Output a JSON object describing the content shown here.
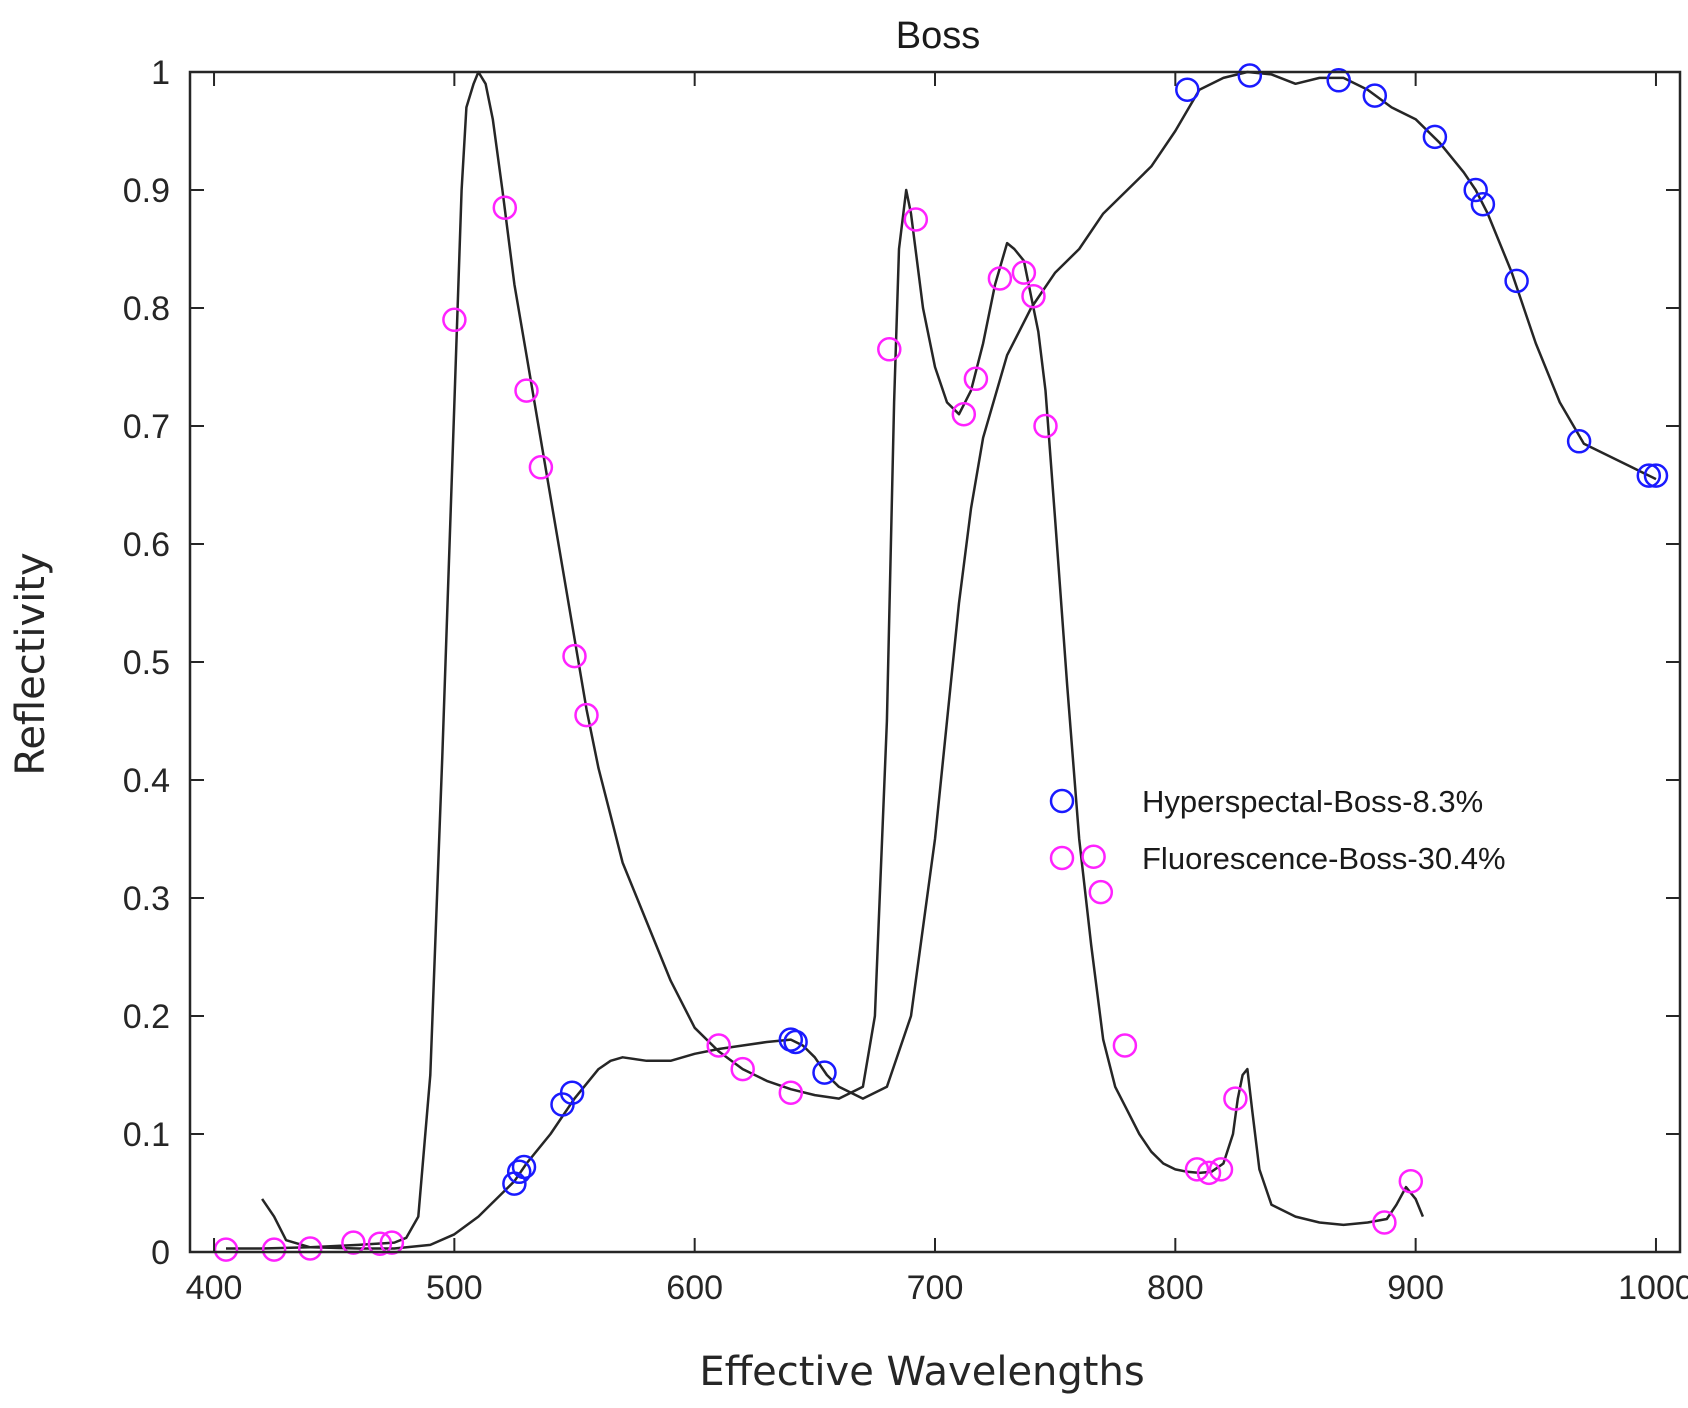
{
  "chart_data": {
    "type": "line",
    "title": "Boss",
    "xlabel": "Effective Wavelengths",
    "ylabel": "Reflectivity",
    "xlim": [
      390,
      1010
    ],
    "ylim": [
      0,
      1
    ],
    "xticks": [
      400,
      500,
      600,
      700,
      800,
      900,
      1000
    ],
    "yticks": [
      0,
      0.1,
      0.2,
      0.3,
      0.4,
      0.5,
      0.6,
      0.7,
      0.8,
      0.9,
      1
    ],
    "ytick_labels": [
      "0",
      "0.1",
      "0.2",
      "0.3",
      "0.4",
      "0.5",
      "0.6",
      "0.7",
      "0.8",
      "0.9",
      "1"
    ],
    "grid": false,
    "legend_position": "center-right",
    "colors": {
      "curve": "#262626",
      "hyperspectral": "#1a1aff",
      "fluorescence": "#ff22ff",
      "axes": "#262626"
    },
    "curves": [
      {
        "x": [
          405,
          420,
          440,
          460,
          475,
          480,
          485,
          490,
          495,
          500,
          503,
          505,
          508,
          510,
          513,
          516,
          520,
          525,
          530,
          535,
          540,
          545,
          550,
          555,
          560,
          565,
          570,
          580,
          590,
          600,
          610,
          620,
          630,
          640,
          650,
          660,
          670,
          675,
          680,
          683,
          685,
          688,
          690,
          695,
          700,
          705,
          710,
          715,
          720,
          725,
          730,
          733,
          737,
          740,
          743,
          746,
          750,
          755,
          760,
          765,
          770,
          775,
          780,
          785,
          790,
          795,
          800,
          805,
          810,
          815,
          820,
          824,
          826,
          828,
          830,
          832,
          835,
          840,
          850,
          860,
          870,
          880,
          888,
          892,
          896,
          900,
          903
        ],
        "y": [
          0.003,
          0.003,
          0.004,
          0.006,
          0.008,
          0.012,
          0.03,
          0.15,
          0.42,
          0.72,
          0.9,
          0.97,
          0.99,
          1.0,
          0.99,
          0.96,
          0.9,
          0.82,
          0.76,
          0.7,
          0.64,
          0.58,
          0.52,
          0.46,
          0.41,
          0.37,
          0.33,
          0.28,
          0.23,
          0.19,
          0.17,
          0.155,
          0.145,
          0.138,
          0.133,
          0.13,
          0.14,
          0.2,
          0.45,
          0.72,
          0.85,
          0.9,
          0.88,
          0.8,
          0.75,
          0.72,
          0.71,
          0.73,
          0.77,
          0.82,
          0.855,
          0.85,
          0.84,
          0.81,
          0.78,
          0.73,
          0.62,
          0.48,
          0.35,
          0.26,
          0.18,
          0.14,
          0.12,
          0.1,
          0.085,
          0.075,
          0.07,
          0.068,
          0.067,
          0.068,
          0.075,
          0.1,
          0.13,
          0.15,
          0.155,
          0.12,
          0.07,
          0.04,
          0.03,
          0.025,
          0.023,
          0.025,
          0.028,
          0.04,
          0.055,
          0.045,
          0.03
        ]
      },
      {
        "x": [
          420,
          425,
          430,
          440,
          460,
          475,
          490,
          500,
          510,
          520,
          525,
          530,
          540,
          550,
          560,
          565,
          570,
          580,
          590,
          600,
          610,
          620,
          630,
          640,
          645,
          650,
          655,
          660,
          670,
          680,
          690,
          700,
          705,
          710,
          715,
          720,
          730,
          740,
          750,
          760,
          770,
          780,
          790,
          800,
          810,
          820,
          830,
          840,
          850,
          860,
          870,
          880,
          890,
          900,
          910,
          920,
          925,
          930,
          940,
          950,
          960,
          970,
          975,
          980,
          985,
          990,
          995,
          1000
        ],
        "y": [
          0.045,
          0.03,
          0.01,
          0.004,
          0.003,
          0.003,
          0.006,
          0.015,
          0.03,
          0.05,
          0.06,
          0.075,
          0.1,
          0.13,
          0.155,
          0.162,
          0.165,
          0.162,
          0.162,
          0.168,
          0.172,
          0.175,
          0.178,
          0.18,
          0.175,
          0.165,
          0.15,
          0.14,
          0.13,
          0.14,
          0.2,
          0.35,
          0.45,
          0.55,
          0.63,
          0.69,
          0.76,
          0.8,
          0.83,
          0.85,
          0.88,
          0.9,
          0.92,
          0.95,
          0.985,
          0.995,
          1.0,
          0.998,
          0.99,
          0.995,
          0.995,
          0.985,
          0.97,
          0.96,
          0.94,
          0.915,
          0.9,
          0.88,
          0.83,
          0.77,
          0.72,
          0.685,
          0.68,
          0.675,
          0.67,
          0.665,
          0.66,
          0.655
        ]
      }
    ],
    "series": [
      {
        "name": "Hyperspectal-Boss-8.3%",
        "color": "#1a1aff",
        "x": [
          525,
          527,
          529,
          545,
          549,
          640,
          642,
          654,
          805,
          831,
          868,
          883,
          908,
          925,
          928,
          942,
          968,
          997,
          1000
        ],
        "y": [
          0.058,
          0.068,
          0.072,
          0.125,
          0.135,
          0.18,
          0.178,
          0.152,
          0.985,
          0.997,
          0.993,
          0.98,
          0.945,
          0.9,
          0.888,
          0.823,
          0.687,
          0.658,
          0.658
        ]
      },
      {
        "name": "Fluorescence-Boss-30.4%",
        "color": "#ff22ff",
        "x": [
          405,
          425,
          440,
          458,
          469,
          474,
          500,
          521,
          530,
          536,
          550,
          555,
          610,
          620,
          640,
          681,
          692,
          712,
          717,
          727,
          737,
          741,
          746,
          766,
          769,
          779,
          809,
          814,
          819,
          825,
          887,
          898
        ],
        "y": [
          0.002,
          0.002,
          0.003,
          0.008,
          0.007,
          0.008,
          0.79,
          0.885,
          0.73,
          0.665,
          0.505,
          0.455,
          0.175,
          0.155,
          0.135,
          0.765,
          0.875,
          0.71,
          0.74,
          0.825,
          0.83,
          0.81,
          0.7,
          0.335,
          0.305,
          0.175,
          0.07,
          0.067,
          0.07,
          0.13,
          0.025,
          0.06
        ]
      }
    ]
  }
}
